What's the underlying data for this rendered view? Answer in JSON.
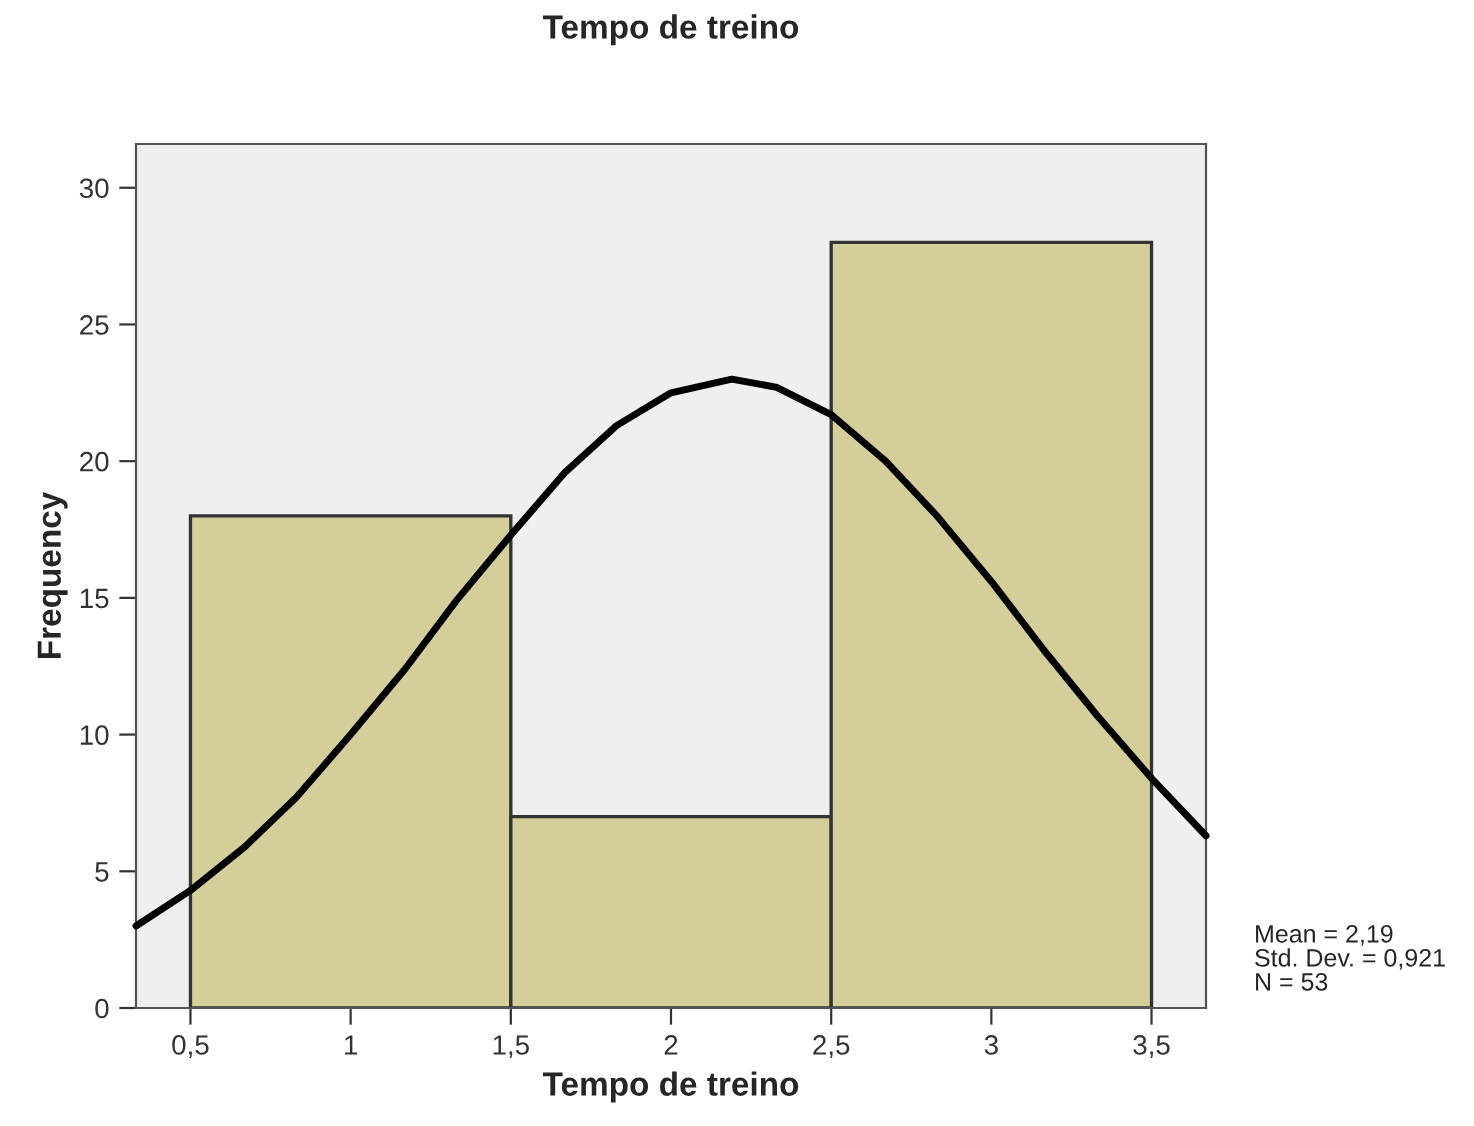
{
  "chart_data": {
    "type": "histogram",
    "title": "Tempo de treino",
    "xlabel": "Tempo de treino",
    "ylabel": "Frequency",
    "series": [
      {
        "color": "#d3ce9a",
        "bins": [
          0.5,
          1.5,
          2.5,
          3.5
        ],
        "values": [
          18,
          7,
          28
        ]
      },
      {
        "type": "line",
        "color": "#000000",
        "x": [
          0.33,
          0.5,
          0.67,
          0.83,
          1.0,
          1.17,
          1.33,
          1.5,
          1.67,
          1.83,
          2.0,
          2.19,
          2.33,
          2.5,
          2.67,
          2.83,
          3.0,
          3.17,
          3.33,
          3.5,
          3.67
        ],
        "values": [
          3.0,
          4.3,
          5.9,
          7.7,
          10.0,
          12.4,
          14.9,
          17.3,
          19.6,
          21.3,
          22.5,
          23.0,
          22.7,
          21.7,
          20.0,
          18.0,
          15.6,
          13.0,
          10.7,
          8.4,
          6.3
        ]
      }
    ],
    "xlim": [
      0.33,
      3.67
    ],
    "xticks": [
      {
        "value": 0.5,
        "label": "0,5"
      },
      1,
      {
        "value": 1.5,
        "label": "1,5"
      },
      2,
      {
        "value": 2.5,
        "label": "2,5"
      },
      3,
      {
        "value": 3.5,
        "label": "3,5"
      }
    ],
    "ylim": [
      0,
      31.6
    ],
    "yticks": [
      0,
      5,
      10,
      15,
      20,
      25,
      30
    ],
    "annotations": [
      "Mean = 2,19",
      "Std. Dev. = 0,921",
      "N = 53"
    ]
  }
}
